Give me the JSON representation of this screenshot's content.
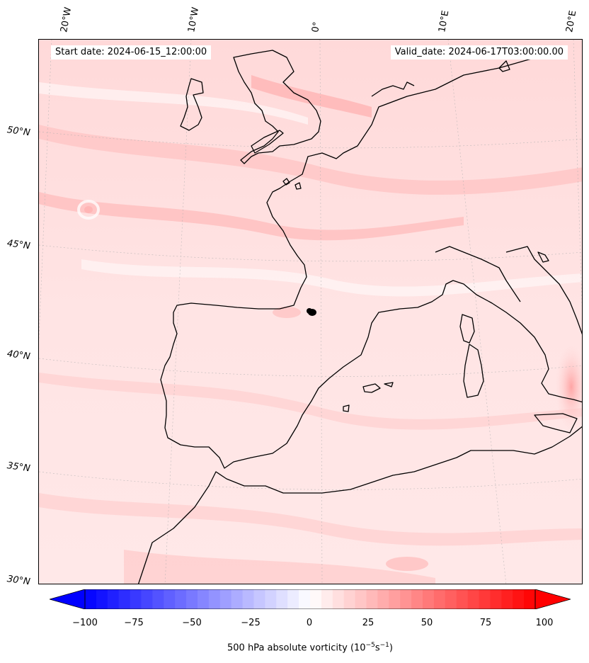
{
  "map": {
    "start_label": "Start date: 2024-06-15_12:00:00",
    "valid_label": "Valid_date: 2024-06-17T03:00:00.00",
    "lon_labels": [
      "20°W",
      "10°W",
      "0°",
      "10°E",
      "20°E"
    ],
    "lat_labels": [
      "50°N",
      "45°N",
      "40°N",
      "35°N",
      "30°N"
    ],
    "field": "500 hPa absolute vorticity",
    "colormap": "bwr",
    "colors": {
      "low": "#0000ff",
      "mid": "#ffffff",
      "high": "#ff0000",
      "coast": "#000000"
    }
  },
  "colorbar": {
    "ticks": [
      "−100",
      "−75",
      "−50",
      "−25",
      "0",
      "25",
      "50",
      "75",
      "100"
    ],
    "label_text": "500 hPa absolute vorticity (10",
    "label_exp1": "−5",
    "label_mid": "s",
    "label_exp2": "−1",
    "label_end": ")",
    "range": [
      -100,
      100
    ]
  }
}
